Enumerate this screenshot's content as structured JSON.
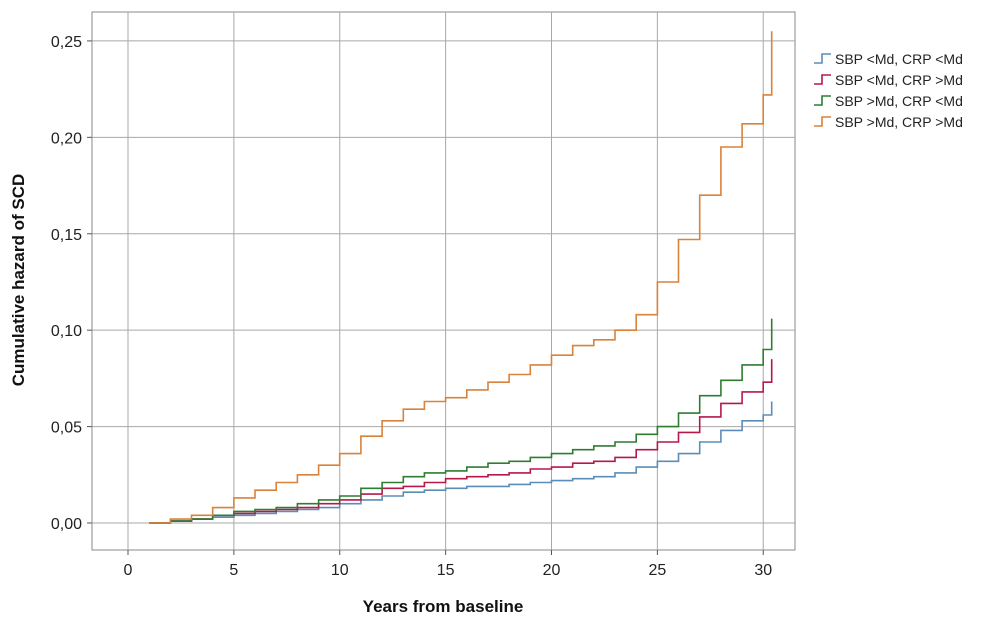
{
  "chart_data": {
    "type": "line",
    "step": true,
    "xlabel": "Years from baseline",
    "ylabel": "Cumulative hazard of SCD",
    "xlim": [
      -1.7,
      31.5
    ],
    "ylim": [
      -0.014,
      0.265
    ],
    "x_ticks": [
      0,
      5,
      10,
      15,
      20,
      25,
      30
    ],
    "x_tick_labels": [
      "0",
      "5",
      "10",
      "15",
      "20",
      "25",
      "30"
    ],
    "y_ticks": [
      0.0,
      0.05,
      0.1,
      0.15,
      0.2,
      0.25
    ],
    "y_tick_labels": [
      "0,00",
      "0,05",
      "0,10",
      "0,15",
      "0,20",
      "0,25"
    ],
    "grid": true,
    "legend_position": "right",
    "series": [
      {
        "name": "SBP <Md, CRP <Md",
        "color": "#5b8db8",
        "points": [
          [
            1,
            0.0
          ],
          [
            2,
            0.001
          ],
          [
            3,
            0.002
          ],
          [
            4,
            0.003
          ],
          [
            5,
            0.004
          ],
          [
            6,
            0.005
          ],
          [
            7,
            0.006
          ],
          [
            8,
            0.007
          ],
          [
            9,
            0.008
          ],
          [
            10,
            0.01
          ],
          [
            11,
            0.012
          ],
          [
            12,
            0.014
          ],
          [
            13,
            0.016
          ],
          [
            14,
            0.017
          ],
          [
            15,
            0.018
          ],
          [
            16,
            0.019
          ],
          [
            17,
            0.019
          ],
          [
            18,
            0.02
          ],
          [
            19,
            0.021
          ],
          [
            20,
            0.022
          ],
          [
            21,
            0.023
          ],
          [
            22,
            0.024
          ],
          [
            23,
            0.026
          ],
          [
            24,
            0.029
          ],
          [
            25,
            0.032
          ],
          [
            26,
            0.036
          ],
          [
            27,
            0.042
          ],
          [
            28,
            0.048
          ],
          [
            29,
            0.053
          ],
          [
            30,
            0.056
          ],
          [
            30.4,
            0.063
          ]
        ]
      },
      {
        "name": "SBP <Md, CRP >Md",
        "color": "#b5194a",
        "points": [
          [
            1,
            0.0
          ],
          [
            2,
            0.001
          ],
          [
            3,
            0.002
          ],
          [
            4,
            0.004
          ],
          [
            5,
            0.005
          ],
          [
            6,
            0.006
          ],
          [
            7,
            0.007
          ],
          [
            8,
            0.008
          ],
          [
            9,
            0.01
          ],
          [
            10,
            0.012
          ],
          [
            11,
            0.015
          ],
          [
            12,
            0.018
          ],
          [
            13,
            0.019
          ],
          [
            14,
            0.021
          ],
          [
            15,
            0.023
          ],
          [
            16,
            0.024
          ],
          [
            17,
            0.025
          ],
          [
            18,
            0.026
          ],
          [
            19,
            0.028
          ],
          [
            20,
            0.029
          ],
          [
            21,
            0.031
          ],
          [
            22,
            0.032
          ],
          [
            23,
            0.034
          ],
          [
            24,
            0.038
          ],
          [
            25,
            0.042
          ],
          [
            26,
            0.047
          ],
          [
            27,
            0.055
          ],
          [
            28,
            0.062
          ],
          [
            29,
            0.068
          ],
          [
            30,
            0.073
          ],
          [
            30.4,
            0.085
          ]
        ]
      },
      {
        "name": "SBP >Md, CRP <Md",
        "color": "#2e7d32",
        "points": [
          [
            1,
            0.0
          ],
          [
            2,
            0.001
          ],
          [
            3,
            0.002
          ],
          [
            4,
            0.004
          ],
          [
            5,
            0.006
          ],
          [
            6,
            0.007
          ],
          [
            7,
            0.008
          ],
          [
            8,
            0.01
          ],
          [
            9,
            0.012
          ],
          [
            10,
            0.014
          ],
          [
            11,
            0.018
          ],
          [
            12,
            0.021
          ],
          [
            13,
            0.024
          ],
          [
            14,
            0.026
          ],
          [
            15,
            0.027
          ],
          [
            16,
            0.029
          ],
          [
            17,
            0.031
          ],
          [
            18,
            0.032
          ],
          [
            19,
            0.034
          ],
          [
            20,
            0.036
          ],
          [
            21,
            0.038
          ],
          [
            22,
            0.04
          ],
          [
            23,
            0.042
          ],
          [
            24,
            0.046
          ],
          [
            25,
            0.05
          ],
          [
            26,
            0.057
          ],
          [
            27,
            0.066
          ],
          [
            28,
            0.074
          ],
          [
            29,
            0.082
          ],
          [
            30,
            0.09
          ],
          [
            30.4,
            0.106
          ]
        ]
      },
      {
        "name": "SBP >Md, CRP >Md",
        "color": "#d9823b",
        "points": [
          [
            1,
            0.0
          ],
          [
            2,
            0.002
          ],
          [
            3,
            0.004
          ],
          [
            4,
            0.008
          ],
          [
            5,
            0.013
          ],
          [
            6,
            0.017
          ],
          [
            7,
            0.021
          ],
          [
            8,
            0.025
          ],
          [
            9,
            0.03
          ],
          [
            10,
            0.036
          ],
          [
            11,
            0.045
          ],
          [
            12,
            0.053
          ],
          [
            13,
            0.059
          ],
          [
            14,
            0.063
          ],
          [
            15,
            0.065
          ],
          [
            16,
            0.069
          ],
          [
            17,
            0.073
          ],
          [
            18,
            0.077
          ],
          [
            19,
            0.082
          ],
          [
            20,
            0.087
          ],
          [
            21,
            0.092
          ],
          [
            22,
            0.095
          ],
          [
            23,
            0.1
          ],
          [
            24,
            0.108
          ],
          [
            25,
            0.125
          ],
          [
            26,
            0.147
          ],
          [
            27,
            0.17
          ],
          [
            28,
            0.195
          ],
          [
            29,
            0.207
          ],
          [
            30,
            0.222
          ],
          [
            30.4,
            0.255
          ]
        ]
      }
    ]
  }
}
